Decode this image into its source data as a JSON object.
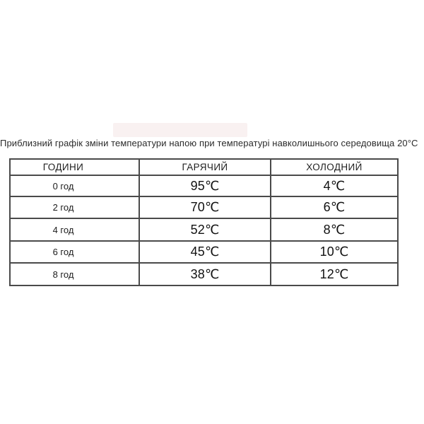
{
  "page": {
    "background": "#ffffff",
    "text_color": "#1c1c1c",
    "table_border_color": "#4a4a4a"
  },
  "chart_data": {
    "type": "table",
    "title": "Приблизний графік зміни температури напою при температурі навколишнього середовища 20°C",
    "columns": [
      "ГОДИНИ",
      "ГАРЯЧИЙ",
      "ХОЛОДНИЙ"
    ],
    "rows": [
      {
        "hours": "0 год",
        "hot": "95℃",
        "cold": "4℃"
      },
      {
        "hours": "2 год",
        "hot": "70℃",
        "cold": "6℃"
      },
      {
        "hours": "4 год",
        "hot": "52℃",
        "cold": "8℃"
      },
      {
        "hours": "6 год",
        "hot": "45℃",
        "cold": "10℃"
      },
      {
        "hours": "8 год",
        "hot": "38℃",
        "cold": "12℃"
      }
    ],
    "units": "°C",
    "ambient_temperature_label": "20°C"
  }
}
